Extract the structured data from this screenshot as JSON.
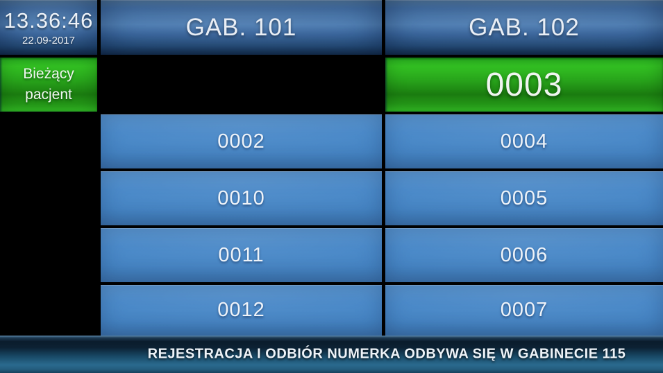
{
  "screen": {
    "clock": {
      "time": "13.36:46",
      "date": "22.09-2017"
    },
    "current_patient_label": "Bieżący pacjent",
    "columns": [
      {
        "header": "GAB. 101",
        "current": "",
        "queue": [
          "0002",
          "0010",
          "0011",
          "0012"
        ]
      },
      {
        "header": "GAB. 102",
        "current": "0003",
        "queue": [
          "0004",
          "0005",
          "0006",
          "0007"
        ]
      }
    ],
    "footer_message": "REJESTRACJA I ODBIÓR NUMERKA ODBYWA SIĘ W GABINECIE 115",
    "colors": {
      "background": "#000000",
      "header_blue": "#3e6fa8",
      "queue_blue": "#4788c9",
      "active_green": "#27a41b",
      "footer_teal": "#2a6a8e",
      "text": "#eef3f9"
    }
  }
}
